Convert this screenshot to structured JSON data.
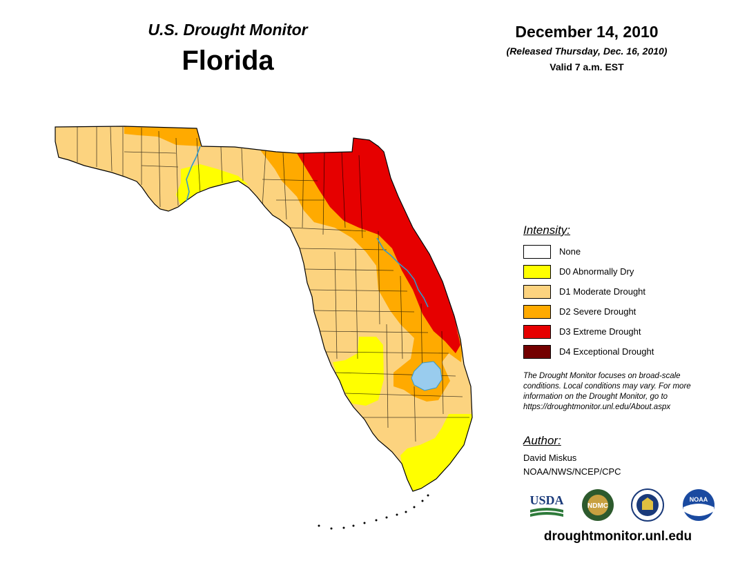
{
  "header": {
    "subtitle": "U.S. Drought Monitor",
    "state": "Florida",
    "date": "December 14, 2010",
    "released": "(Released Thursday, Dec. 16, 2010)",
    "valid": "Valid 7 a.m. EST"
  },
  "legend": {
    "title": "Intensity:",
    "items": [
      {
        "label": "None",
        "color": "#ffffff"
      },
      {
        "label": "D0 Abnormally Dry",
        "color": "#ffff00"
      },
      {
        "label": "D1 Moderate Drought",
        "color": "#fcd37f"
      },
      {
        "label": "D2 Severe Drought",
        "color": "#ffaa00"
      },
      {
        "label": "D3 Extreme Drought",
        "color": "#e60000"
      },
      {
        "label": "D4 Exceptional Drought",
        "color": "#730000"
      }
    ]
  },
  "note": {
    "line1": "The Drought Monitor focuses on broad-scale",
    "line2": "conditions. Local conditions may vary. For more",
    "line3": "information on the Drought Monitor, go to",
    "line4": "https://droughtmonitor.unl.edu/About.aspx"
  },
  "author": {
    "title": "Author:",
    "name": "David Miskus",
    "org": "NOAA/NWS/NCEP/CPC"
  },
  "logos": {
    "usda": "USDA",
    "ndmc": "NDMC",
    "noaa": "NOAA"
  },
  "footer": {
    "url": "droughtmonitor.unl.edu"
  },
  "colors": {
    "water": "#99ccee",
    "river": "#3399cc",
    "county_lines": "#000000"
  }
}
